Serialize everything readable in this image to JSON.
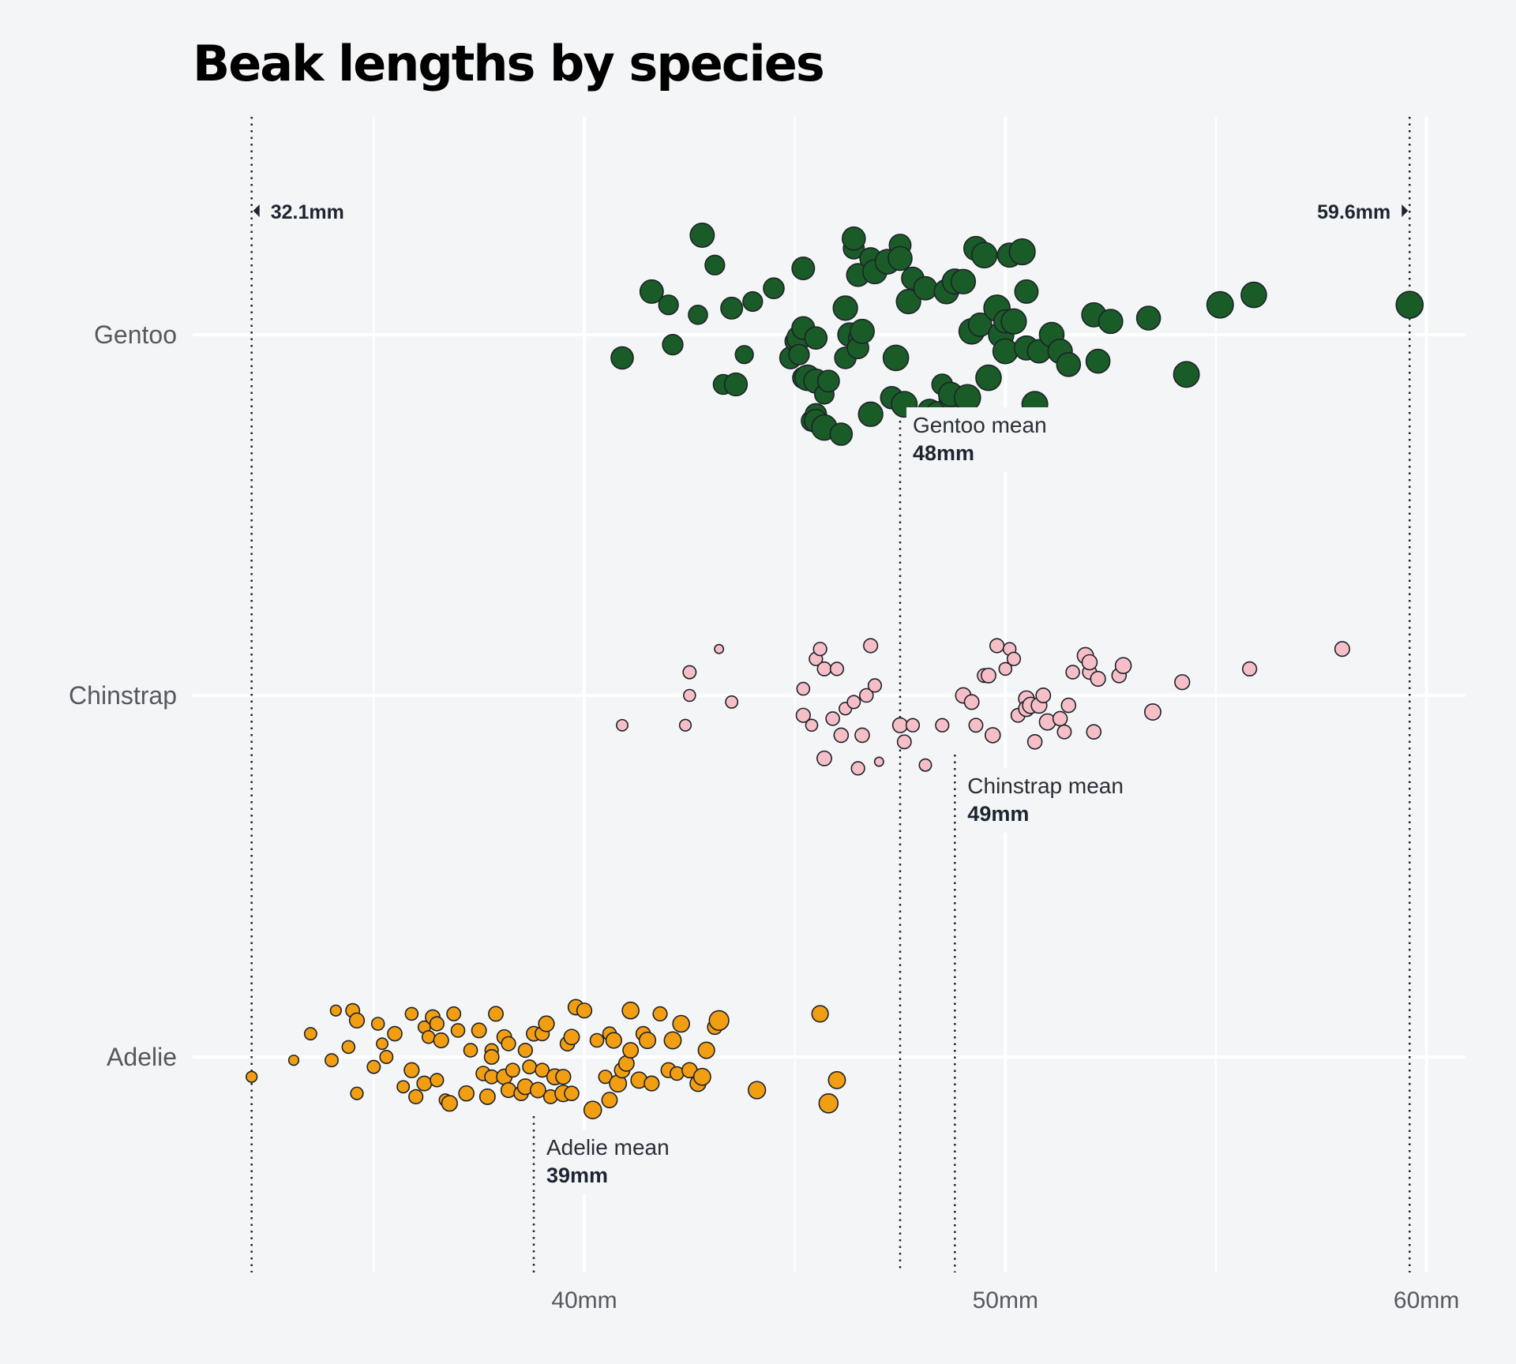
{
  "chart_data": {
    "type": "scatter",
    "title": "Beak lengths by species",
    "xlim": [
      31,
      61
    ],
    "x_ticks": [
      40,
      50,
      60
    ],
    "x_tick_labels": [
      "40mm",
      "50mm",
      "60mm"
    ],
    "grid": true,
    "categories": [
      "Gentoo",
      "Chinstrap",
      "Adelie"
    ],
    "range_annotations": [
      {
        "value": 32.1,
        "label": "32.1mm",
        "side": "left"
      },
      {
        "value": 59.6,
        "label": "59.6mm",
        "side": "right"
      }
    ],
    "series": [
      {
        "category": "Gentoo",
        "color": "#1a5c27",
        "mean": 47.5,
        "mean_name": "Gentoo mean",
        "mean_label": "48mm",
        "values": [
          40.9,
          41.6,
          42.0,
          42.1,
          42.7,
          42.8,
          43.1,
          43.3,
          43.5,
          43.6,
          43.8,
          44.0,
          44.5,
          44.9,
          45.0,
          45.1,
          45.1,
          45.2,
          45.2,
          45.2,
          45.3,
          45.4,
          45.5,
          45.5,
          45.5,
          45.5,
          45.7,
          45.7,
          45.8,
          46.1,
          46.2,
          46.2,
          46.3,
          46.4,
          46.4,
          46.5,
          46.5,
          46.5,
          46.6,
          46.8,
          46.8,
          46.9,
          47.2,
          47.3,
          47.4,
          47.5,
          47.5,
          47.6,
          47.7,
          47.8,
          48.1,
          48.2,
          48.4,
          48.5,
          48.6,
          48.7,
          48.7,
          48.8,
          49.0,
          49.1,
          49.1,
          49.2,
          49.3,
          49.4,
          49.5,
          49.6,
          49.8,
          49.9,
          50.0,
          50.0,
          50.1,
          50.2,
          50.4,
          50.5,
          50.5,
          50.7,
          50.8,
          51.1,
          51.3,
          51.5,
          52.1,
          52.2,
          52.5,
          53.4,
          54.3,
          55.1,
          55.9,
          59.6
        ],
        "sizes_g": [
          5200,
          5400,
          4700,
          4850,
          4600,
          5550,
          4700,
          4750,
          5100,
          5300,
          4400,
          4700,
          4900,
          5100,
          4700,
          5600,
          4850,
          5000,
          5250,
          5300,
          5800,
          4900,
          5000,
          5350,
          5200,
          5550,
          4650,
          5800,
          5100,
          5200,
          5050,
          5600,
          5450,
          4950,
          5350,
          4600,
          5300,
          5050,
          5550,
          5600,
          5050,
          5550,
          5650,
          5200,
          5800,
          5100,
          5500,
          5850,
          5600,
          5200,
          5400,
          5400,
          5750,
          4900,
          5600,
          5400,
          5550,
          5750,
          5600,
          5650,
          5950,
          5800,
          5550,
          5400,
          5800,
          5800,
          5950,
          5800,
          5350,
          5700,
          5550,
          5750,
          5900,
          5550,
          5400,
          5850,
          5400,
          5650,
          5600,
          5500,
          5550,
          5500,
          5550,
          5500,
          5850,
          6000,
          5800,
          6100
        ],
        "offsets": [
          0.07,
          -0.13,
          -0.09,
          0.03,
          -0.06,
          -0.3,
          -0.21,
          0.15,
          -0.08,
          0.15,
          0.06,
          -0.1,
          -0.14,
          0.07,
          0.02,
          0.01,
          0.06,
          0.13,
          -0.2,
          -0.02,
          0.13,
          0.26,
          0.24,
          0.26,
          0.01,
          0.14,
          0.18,
          0.28,
          0.14,
          0.3,
          0.07,
          -0.08,
          0.0,
          -0.26,
          -0.29,
          0.01,
          -0.18,
          0.04,
          -0.01,
          0.24,
          -0.23,
          -0.19,
          -0.22,
          0.19,
          0.07,
          -0.27,
          -0.23,
          0.21,
          -0.1,
          -0.17,
          -0.14,
          0.23,
          0.24,
          0.15,
          -0.13,
          0.19,
          0.18,
          -0.16,
          -0.16,
          0.28,
          0.19,
          -0.01,
          -0.26,
          -0.03,
          -0.24,
          0.13,
          -0.08,
          0.0,
          -0.04,
          0.05,
          -0.24,
          -0.04,
          -0.25,
          0.04,
          -0.13,
          0.21,
          0.05,
          0.0,
          0.05,
          0.09,
          -0.06,
          0.08,
          -0.04,
          -0.05,
          0.12,
          -0.09,
          -0.12,
          -0.09
        ]
      },
      {
        "category": "Chinstrap",
        "color": "#f6bfc8",
        "mean": 48.8,
        "mean_name": "Chinstrap mean",
        "mean_label": "49mm",
        "values": [
          40.9,
          42.4,
          42.5,
          42.5,
          43.2,
          43.5,
          45.2,
          45.2,
          45.4,
          45.5,
          45.6,
          45.7,
          45.7,
          45.9,
          46.0,
          46.1,
          46.2,
          46.4,
          46.5,
          46.6,
          46.7,
          46.8,
          46.9,
          47.0,
          47.5,
          47.6,
          47.8,
          48.1,
          48.5,
          49.0,
          49.2,
          49.3,
          49.5,
          49.6,
          49.7,
          49.8,
          50.0,
          50.1,
          50.2,
          50.3,
          50.5,
          50.5,
          50.6,
          50.7,
          50.8,
          50.9,
          51.0,
          51.3,
          51.4,
          51.5,
          51.6,
          51.9,
          52.0,
          52.0,
          52.1,
          52.2,
          52.7,
          52.8,
          53.5,
          54.2,
          55.8,
          58.0
        ],
        "sizes_g": [
          3150,
          3200,
          3450,
          3250,
          2700,
          3300,
          3650,
          3400,
          3250,
          3500,
          3500,
          3600,
          3750,
          3550,
          3500,
          3700,
          3350,
          3450,
          3500,
          3700,
          3550,
          3650,
          3500,
          2700,
          3800,
          3600,
          3500,
          3300,
          3500,
          3900,
          3750,
          3600,
          3600,
          3750,
          3850,
          3650,
          3400,
          3400,
          3500,
          3600,
          3950,
          3950,
          4050,
          3700,
          3950,
          3750,
          4050,
          3700,
          3600,
          3700,
          3550,
          4050,
          3650,
          3850,
          3700,
          3800,
          3700,
          4000,
          4050,
          3800,
          3650,
          3775
        ],
        "offsets": [
          0.09,
          0.09,
          -0.07,
          0.0,
          -0.14,
          0.02,
          0.06,
          -0.02,
          0.09,
          -0.11,
          -0.14,
          -0.08,
          0.19,
          0.07,
          -0.08,
          0.12,
          0.04,
          0.02,
          0.22,
          0.12,
          0.0,
          -0.15,
          -0.03,
          0.2,
          0.09,
          0.14,
          0.09,
          0.21,
          0.09,
          0.0,
          0.02,
          0.09,
          -0.06,
          -0.06,
          0.12,
          -0.15,
          -0.08,
          -0.14,
          -0.11,
          0.06,
          0.01,
          0.04,
          0.03,
          0.14,
          0.03,
          0.0,
          0.08,
          0.07,
          0.11,
          0.03,
          -0.07,
          -0.12,
          -0.07,
          -0.1,
          0.11,
          -0.05,
          -0.06,
          -0.09,
          0.05,
          -0.04,
          -0.08,
          -0.14
        ]
      },
      {
        "category": "Adelie",
        "color": "#f29e12",
        "mean": 38.8,
        "mean_name": "Adelie mean",
        "mean_label": "39mm",
        "values": [
          32.1,
          33.1,
          33.5,
          34.0,
          34.1,
          34.4,
          34.5,
          34.6,
          34.6,
          35.0,
          35.1,
          35.2,
          35.3,
          35.5,
          35.7,
          35.9,
          35.9,
          36.0,
          36.2,
          36.2,
          36.3,
          36.4,
          36.5,
          36.5,
          36.6,
          36.7,
          36.8,
          36.9,
          37.0,
          37.2,
          37.3,
          37.5,
          37.6,
          37.7,
          37.8,
          37.8,
          37.8,
          37.9,
          38.1,
          38.1,
          38.2,
          38.2,
          38.3,
          38.5,
          38.6,
          38.6,
          38.7,
          38.8,
          38.9,
          39.0,
          39.0,
          39.1,
          39.2,
          39.3,
          39.5,
          39.5,
          39.6,
          39.7,
          39.7,
          39.8,
          40.0,
          40.2,
          40.3,
          40.5,
          40.6,
          40.6,
          40.7,
          40.8,
          40.9,
          41.0,
          41.1,
          41.1,
          41.3,
          41.4,
          41.5,
          41.6,
          41.8,
          42.0,
          42.1,
          42.2,
          42.3,
          42.5,
          42.7,
          42.8,
          42.9,
          43.1,
          43.2,
          44.1,
          45.6,
          45.8,
          46.0
        ],
        "sizes_g": [
          3050,
          2900,
          3300,
          3450,
          3050,
          3400,
          3600,
          3350,
          3800,
          3450,
          3400,
          3150,
          3450,
          3700,
          3300,
          3800,
          3400,
          3650,
          3300,
          3750,
          3400,
          3750,
          3650,
          3500,
          3800,
          3300,
          3950,
          3600,
          3550,
          3850,
          3550,
          3750,
          3700,
          3900,
          3600,
          3500,
          3750,
          3750,
          3750,
          3900,
          3650,
          3800,
          3600,
          3700,
          3950,
          3650,
          3600,
          3750,
          3900,
          3650,
          3600,
          3950,
          3600,
          4000,
          4100,
          3800,
          3725,
          3900,
          3700,
          3900,
          3800,
          4300,
          3550,
          3500,
          3900,
          3550,
          3950,
          4200,
          3900,
          3900,
          3900,
          4150,
          4050,
          3700,
          4100,
          3800,
          3650,
          3800,
          4200,
          3550,
          4150,
          3850,
          4000,
          4200,
          4075,
          3750,
          4700,
          4250,
          4100,
          4600,
          4200
        ],
        "offsets": [
          0.06,
          0.01,
          -0.07,
          0.01,
          -0.14,
          -0.03,
          -0.14,
          0.11,
          -0.11,
          0.03,
          -0.1,
          -0.04,
          0.0,
          -0.07,
          0.09,
          0.04,
          -0.13,
          0.12,
          -0.09,
          0.08,
          -0.06,
          -0.12,
          -0.1,
          0.07,
          -0.05,
          0.13,
          0.14,
          -0.13,
          -0.08,
          0.11,
          -0.02,
          -0.08,
          0.05,
          0.12,
          0.06,
          -0.02,
          0.0,
          -0.13,
          -0.06,
          0.06,
          -0.04,
          0.1,
          0.04,
          0.11,
          0.09,
          -0.02,
          0.03,
          -0.07,
          0.1,
          -0.07,
          0.04,
          -0.1,
          0.12,
          0.06,
          0.11,
          0.06,
          -0.04,
          -0.06,
          0.11,
          -0.15,
          -0.14,
          0.16,
          -0.05,
          0.06,
          0.13,
          -0.07,
          -0.05,
          0.08,
          0.04,
          0.02,
          -0.02,
          -0.14,
          0.07,
          -0.07,
          -0.05,
          0.08,
          -0.13,
          0.04,
          -0.05,
          0.05,
          -0.1,
          0.04,
          0.08,
          0.06,
          -0.02,
          -0.09,
          -0.11,
          0.1,
          -0.13,
          0.14,
          0.07
        ]
      }
    ]
  }
}
